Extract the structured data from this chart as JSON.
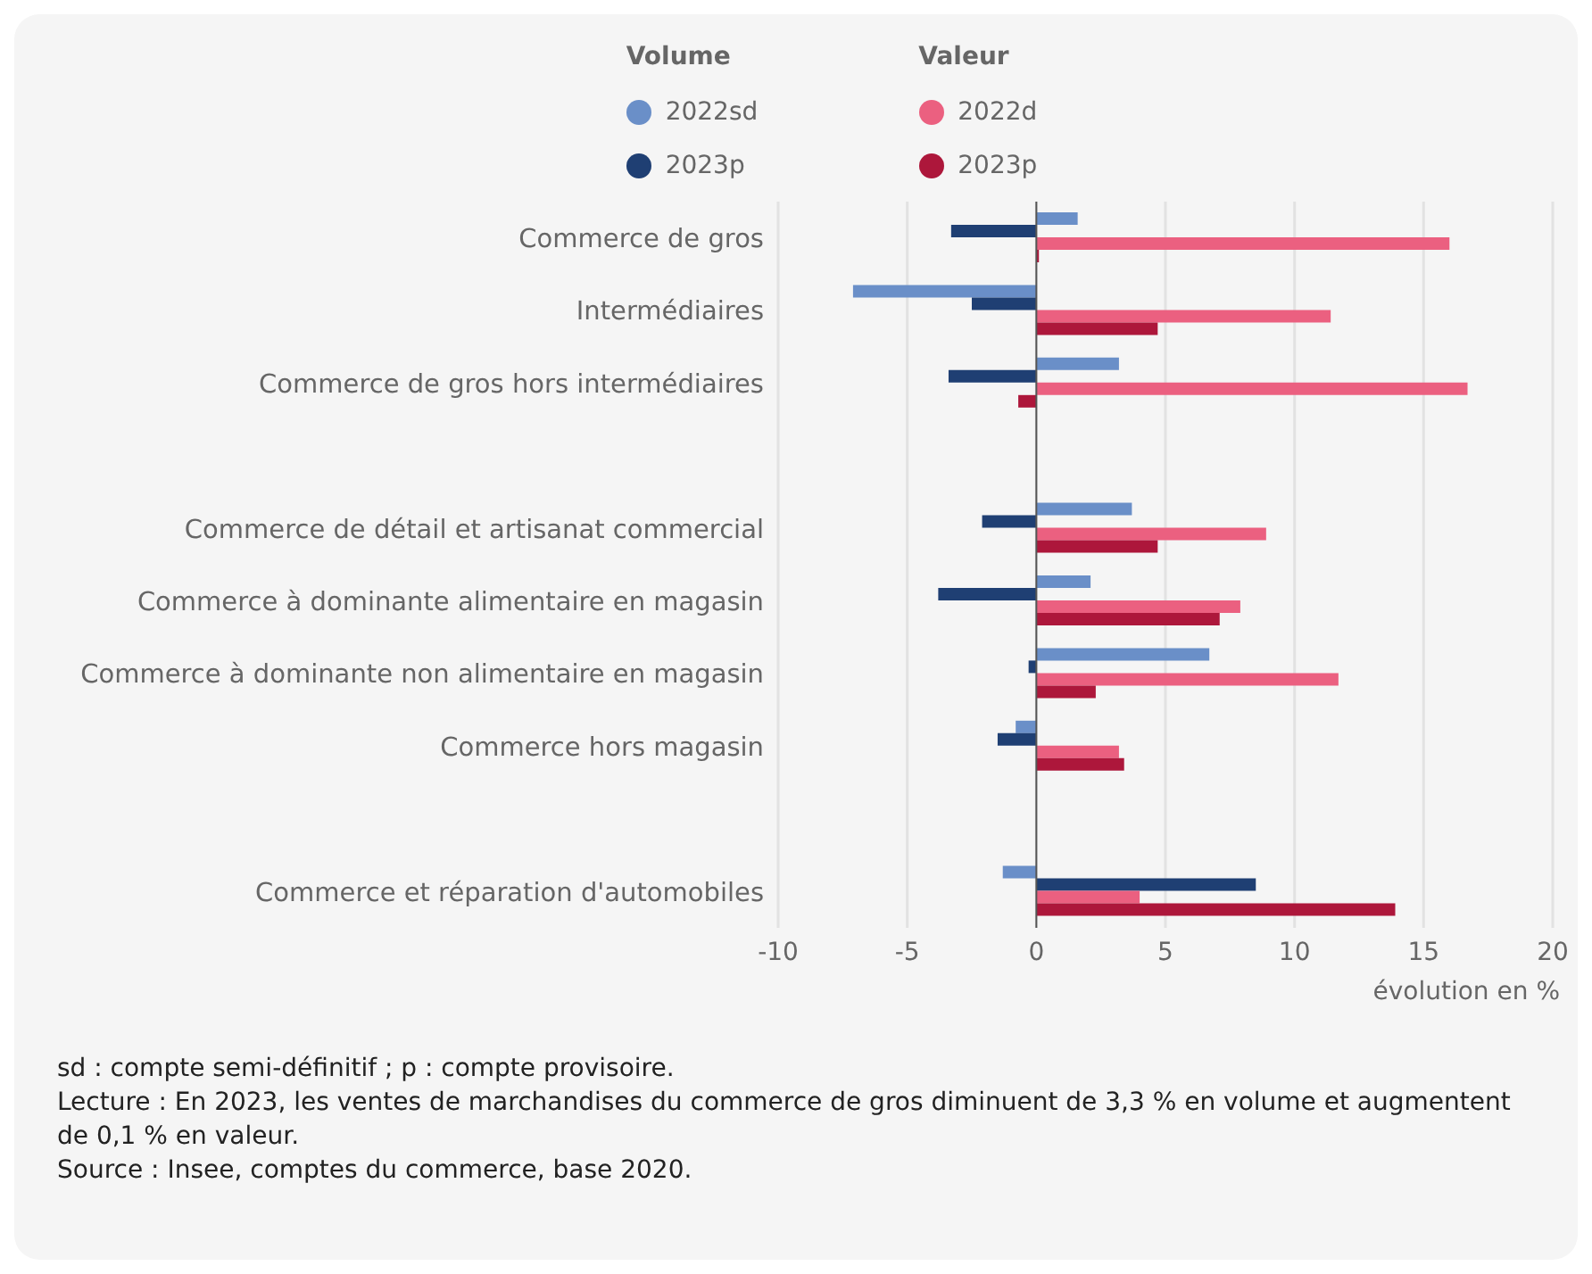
{
  "chart_data": {
    "type": "bar",
    "orientation": "horizontal",
    "xlabel": "évolution en %",
    "categories": [
      "Commerce de gros",
      "Intermédiaires",
      "Commerce de gros hors intermédiaires",
      null,
      "Commerce de détail et artisanat commercial",
      "Commerce à dominante alimentaire en magasin",
      "Commerce à dominante non alimentaire en magasin",
      "Commerce hors magasin",
      null,
      "Commerce et réparation d'automobiles"
    ],
    "series": [
      {
        "name": "2022sd",
        "color": "#6a8fc8",
        "values": [
          1.6,
          -7.1,
          3.2,
          null,
          3.7,
          2.1,
          6.7,
          -0.8,
          null,
          -1.3
        ]
      },
      {
        "name": "2023p",
        "color": "#1f3f73",
        "values": [
          -3.3,
          -2.5,
          -3.4,
          null,
          -2.1,
          -3.8,
          -0.3,
          -1.5,
          null,
          8.5
        ]
      },
      {
        "name": "2022d",
        "color": "#eb6080",
        "values": [
          16.0,
          11.4,
          16.7,
          null,
          8.9,
          7.9,
          11.7,
          3.2,
          null,
          4.0
        ]
      },
      {
        "name": "2023p",
        "color": "#ad173b",
        "values": [
          0.1,
          4.7,
          -0.7,
          null,
          4.7,
          7.1,
          2.3,
          3.4,
          null,
          13.9
        ]
      }
    ],
    "xlim": [
      -10,
      20
    ],
    "xticks": [
      -10,
      -5,
      0,
      5,
      10,
      15,
      20
    ],
    "grid": "x",
    "legend": "top",
    "ref_lines": [
      {
        "axis": "x",
        "value": 0,
        "color": "#555555"
      }
    ],
    "annotations": [
      "Volume",
      "Valeur",
      "sd : compte semi-définitif ; p : compte provisoire.",
      "Lecture : En 2023, les ventes de marchandises du commerce de gros diminuent de 3,3 % en volume et augmentent de 0,1 % en valeur.",
      "Source : Insee, comptes du commerce, base 2020."
    ]
  }
}
